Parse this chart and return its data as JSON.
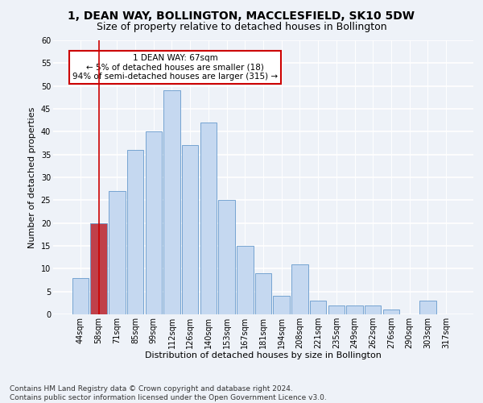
{
  "title": "1, DEAN WAY, BOLLINGTON, MACCLESFIELD, SK10 5DW",
  "subtitle": "Size of property relative to detached houses in Bollington",
  "xlabel": "Distribution of detached houses by size in Bollington",
  "ylabel": "Number of detached properties",
  "categories": [
    "44sqm",
    "58sqm",
    "71sqm",
    "85sqm",
    "99sqm",
    "112sqm",
    "126sqm",
    "140sqm",
    "153sqm",
    "167sqm",
    "181sqm",
    "194sqm",
    "208sqm",
    "221sqm",
    "235sqm",
    "249sqm",
    "262sqm",
    "276sqm",
    "290sqm",
    "303sqm",
    "317sqm"
  ],
  "values": [
    8,
    20,
    27,
    36,
    40,
    49,
    37,
    42,
    25,
    15,
    9,
    4,
    11,
    3,
    2,
    2,
    2,
    1,
    0,
    3,
    0
  ],
  "bar_color_normal": "#c5d8f0",
  "bar_color_highlight": "#c0404a",
  "bar_edge_color": "#6699cc",
  "highlight_index": 1,
  "annotation_text": "1 DEAN WAY: 67sqm\n← 5% of detached houses are smaller (18)\n94% of semi-detached houses are larger (315) →",
  "annotation_box_color": "#ffffff",
  "annotation_box_edge": "#cc0000",
  "ylim": [
    0,
    60
  ],
  "yticks": [
    0,
    5,
    10,
    15,
    20,
    25,
    30,
    35,
    40,
    45,
    50,
    55,
    60
  ],
  "footer_line1": "Contains HM Land Registry data © Crown copyright and database right 2024.",
  "footer_line2": "Contains public sector information licensed under the Open Government Licence v3.0.",
  "bg_color": "#eef2f8",
  "grid_color": "#ffffff",
  "title_fontsize": 10,
  "subtitle_fontsize": 9,
  "axis_label_fontsize": 8,
  "tick_fontsize": 7,
  "annotation_fontsize": 7.5,
  "footer_fontsize": 6.5
}
